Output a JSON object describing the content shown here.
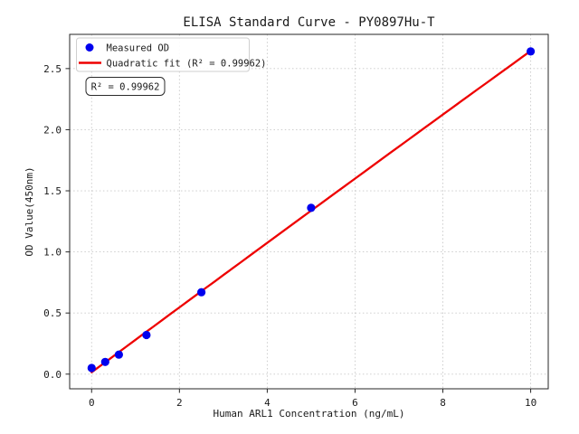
{
  "window": {
    "background": "#ffffff"
  },
  "chart_data": {
    "type": "scatter",
    "title": "ELISA Standard Curve - PY0897Hu-T",
    "xlabel": "Human ARL1 Concentration (ng/mL)",
    "ylabel": "OD Value(450nm)",
    "xlim": [
      -0.5,
      10.4
    ],
    "ylim": [
      -0.12,
      2.78
    ],
    "xtick_values": [
      0,
      2,
      4,
      6,
      8,
      10
    ],
    "xtick_labels": [
      "0",
      "2",
      "4",
      "6",
      "8",
      "10"
    ],
    "ytick_values": [
      0,
      0.5,
      1.0,
      1.5,
      2.0,
      2.5
    ],
    "ytick_labels": [
      "0.0",
      "0.5",
      "1.0",
      "1.5",
      "2.0",
      "2.5"
    ],
    "grid": true,
    "grid_style": "dotted",
    "legend_position": "upper-left",
    "series": [
      {
        "name": "Measured OD",
        "type": "scatter",
        "marker": "circle",
        "color": "#0000ee",
        "x": [
          0,
          0.31,
          0.62,
          1.25,
          2.5,
          5,
          10
        ],
        "y": [
          0.05,
          0.1,
          0.16,
          0.32,
          0.67,
          1.36,
          2.64
        ]
      },
      {
        "name": "Quadratic fit (R² = 0.99962)",
        "type": "line",
        "color": "#ee0000",
        "fit": "quadratic",
        "x_range": [
          0,
          10
        ]
      }
    ],
    "annotation": {
      "text": "R² = 0.99962"
    },
    "r_squared": 0.99962,
    "colors": {
      "points": "#0000ee",
      "fit_line": "#ee0000",
      "grid": "#c8c8c8",
      "frame": "#262626"
    }
  }
}
